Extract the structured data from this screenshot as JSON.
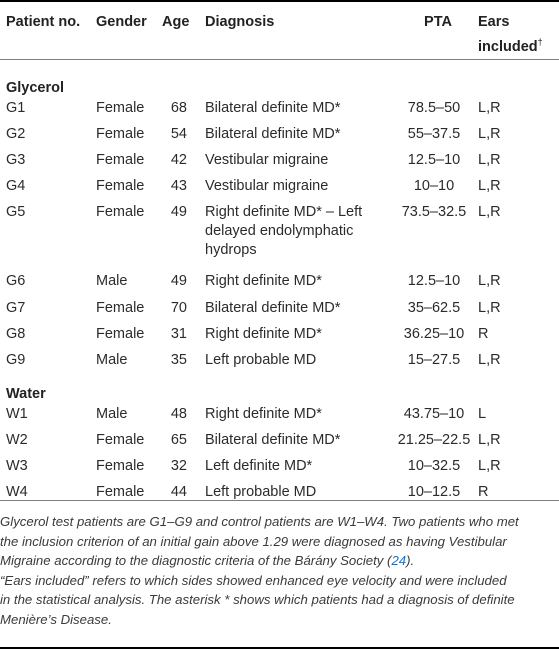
{
  "headers": {
    "patient_no": "Patient no.",
    "gender": "Gender",
    "age": "Age",
    "diagnosis": "Diagnosis",
    "pta": "PTA",
    "ears_line1": "Ears",
    "ears_line2": "included",
    "ears_dagger": "†"
  },
  "sections": {
    "glycerol": "Glycerol",
    "water": "Water"
  },
  "rows": [
    {
      "id": "G1",
      "gender": "Female",
      "age": "68",
      "diagnosis": "Bilateral definite MD*",
      "pta": "78.5–50",
      "ears": "L,R"
    },
    {
      "id": "G2",
      "gender": "Female",
      "age": "54",
      "diagnosis": "Bilateral definite MD*",
      "pta": "55–37.5",
      "ears": "L,R"
    },
    {
      "id": "G3",
      "gender": "Female",
      "age": "42",
      "diagnosis": "Vestibular migraine",
      "pta": "12.5–10",
      "ears": "L,R"
    },
    {
      "id": "G4",
      "gender": "Female",
      "age": "43",
      "diagnosis": "Vestibular migraine",
      "pta": "10–10",
      "ears": "L,R"
    },
    {
      "id": "G5",
      "gender": "Female",
      "age": "49",
      "diagnosis_lines": [
        "Right definite MD* – Left",
        "delayed endolymphatic",
        "hydrops"
      ],
      "pta": "73.5–32.5",
      "ears": "L,R"
    },
    {
      "id": "G6",
      "gender": "Male",
      "age": "49",
      "diagnosis": "Right definite MD*",
      "pta": "12.5–10",
      "ears": "L,R"
    },
    {
      "id": "G7",
      "gender": "Female",
      "age": "70",
      "diagnosis": "Bilateral definite MD*",
      "pta": "35–62.5",
      "ears": "L,R"
    },
    {
      "id": "G8",
      "gender": "Female",
      "age": "31",
      "diagnosis": "Right definite MD*",
      "pta": "36.25–10",
      "ears": "R"
    },
    {
      "id": "G9",
      "gender": "Male",
      "age": "35",
      "diagnosis": "Left probable MD",
      "pta": "15–27.5",
      "ears": "L,R"
    },
    {
      "id": "W1",
      "gender": "Male",
      "age": "48",
      "diagnosis": "Right definite MD*",
      "pta": "43.75–10",
      "ears": "L"
    },
    {
      "id": "W2",
      "gender": "Female",
      "age": "65",
      "diagnosis": "Bilateral definite MD*",
      "pta": "21.25–22.5",
      "ears": "L,R"
    },
    {
      "id": "W3",
      "gender": "Female",
      "age": "32",
      "diagnosis": "Left definite MD*",
      "pta": "10–32.5",
      "ears": "L,R"
    },
    {
      "id": "W4",
      "gender": "Female",
      "age": "44",
      "diagnosis": "Left probable MD",
      "pta": "10–12.5",
      "ears": "R"
    }
  ],
  "notes": {
    "p1_line1": "Glycerol test patients are G1–G9 and control patients are W1–W4. Two patients who met",
    "p1_line2": "the inclusion criterion of an initial gain above 1.29 were diagnosed as having Vestibular",
    "p1_line3_a": "Migraine according to the diagnostic criteria of the Bárány Society (",
    "p1_line3_ref": "24",
    "p1_line3_b": ").",
    "p2_line1": "“Ears included” refers to which sides showed enhanced eye velocity and were included",
    "p2_line2": "in the statistical analysis. The asterisk * shows which patients had a diagnosis of definite",
    "p2_line3": "Menière’s Disease."
  },
  "colors": {
    "text": "#2b2b2b",
    "link": "#1f6fbf",
    "rule": "#000000"
  }
}
